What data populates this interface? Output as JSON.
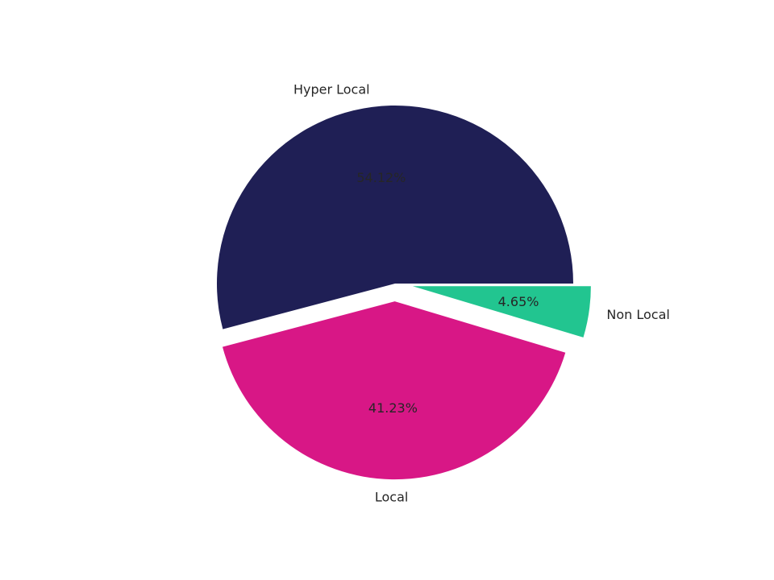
{
  "chart_data": {
    "type": "pie",
    "title": "",
    "slices": [
      {
        "label": "Hyper Local",
        "value": 54.12,
        "pct_label": "54.12%",
        "color": "#1f1f55",
        "exploded": false
      },
      {
        "label": "Local",
        "value": 41.23,
        "pct_label": "41.23%",
        "color": "#d81786",
        "exploded": true
      },
      {
        "label": "Non Local",
        "value": 4.65,
        "pct_label": "4.65%",
        "color": "#22c590",
        "exploded": true
      }
    ],
    "start_angle_deg": 0,
    "direction": "counterclockwise",
    "legend": "none"
  }
}
